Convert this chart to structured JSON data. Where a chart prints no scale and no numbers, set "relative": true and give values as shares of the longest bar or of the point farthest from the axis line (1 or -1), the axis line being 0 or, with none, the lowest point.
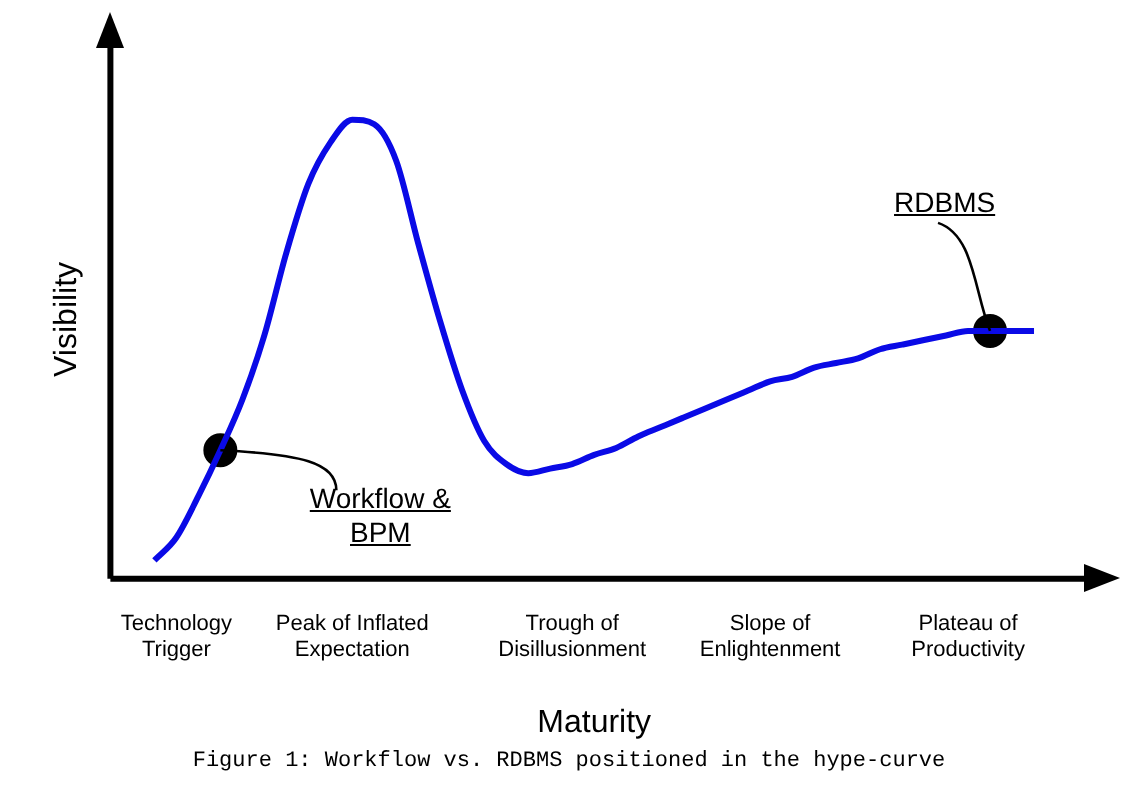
{
  "chart_data": {
    "type": "line",
    "relative": true,
    "xlabel": "Maturity",
    "ylabel": "Visibility",
    "categories": [
      null,
      null,
      null,
      "Technology Trigger",
      null,
      null,
      null,
      null,
      null,
      null,
      null,
      "Peak of Inflated Expectation",
      null,
      null,
      null,
      null,
      null,
      null,
      null,
      null,
      null,
      "Trough of Disillusionment",
      null,
      null,
      null,
      null,
      null,
      null,
      null,
      null,
      "Slope of Enlightenment",
      null,
      null,
      null,
      null,
      null,
      null,
      null,
      null,
      "Plateau of Productivity",
      null,
      null,
      null,
      null,
      null
    ],
    "grid": false,
    "legend": false,
    "series": [
      {
        "color": "#0a0ae6",
        "values": [
          null,
          null,
          0.04,
          0.09,
          0.18,
          0.28,
          0.39,
          0.53,
          0.71,
          0.86,
          0.95,
          1,
          0.99,
          0.91,
          0.73,
          0.56,
          0.41,
          0.3,
          0.25,
          0.23,
          0.24,
          0.25,
          0.27,
          0.285,
          0.31,
          0.33,
          0.35,
          0.37,
          0.39,
          0.41,
          0.43,
          0.44,
          0.46,
          0.47,
          0.48,
          0.5,
          0.51,
          0.52,
          0.53,
          0.54,
          0.54,
          0.54,
          0.54,
          null,
          null
        ]
      },
      {
        "type": "scatter",
        "color": "#000000",
        "values": [
          null,
          null,
          null,
          null,
          null,
          0.28,
          null,
          null,
          null,
          null,
          null,
          null,
          null,
          null,
          null,
          null,
          null,
          null,
          null,
          null,
          null,
          null,
          null,
          null,
          null,
          null,
          null,
          null,
          null,
          null,
          null,
          null,
          null,
          null,
          null,
          null,
          null,
          null,
          null,
          null,
          0.54,
          null,
          null,
          null,
          null
        ]
      }
    ],
    "annotations": [
      "Workflow & BPM",
      "RDBMS",
      "Figure 1: Workflow vs. RDBMS positioned in the hype-curve"
    ]
  }
}
